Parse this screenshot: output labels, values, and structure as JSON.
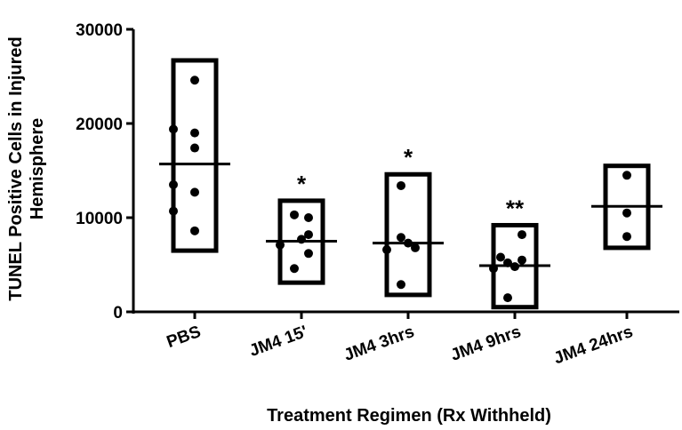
{
  "chart_data": {
    "type": "scatter",
    "ylabel_lines": [
      "TUNEL Positive Cells in Injured",
      "Hemisphere"
    ],
    "xlabel": "Treatment Regimen (Rx Withheld)",
    "ylim": [
      0,
      30000
    ],
    "yticks": [
      0,
      10000,
      20000,
      30000
    ],
    "ytick_labels": [
      "0",
      "10000",
      "20000",
      "30000"
    ],
    "groups": [
      {
        "label": "PBS",
        "min": 6500,
        "max": 26700,
        "mean": 15700,
        "points": [
          24600,
          19400,
          19000,
          17400,
          13500,
          12700,
          10700,
          8600
        ],
        "sig": ""
      },
      {
        "label": "JM4 15'",
        "min": 3100,
        "max": 11800,
        "mean": 7500,
        "points": [
          10300,
          10000,
          8200,
          7700,
          7100,
          6200,
          4600
        ],
        "sig": "*"
      },
      {
        "label": "JM4 3hrs",
        "min": 1800,
        "max": 14600,
        "mean": 7300,
        "points": [
          13400,
          7900,
          7300,
          6800,
          6600,
          2900
        ],
        "sig": "*"
      },
      {
        "label": "JM4 9hrs",
        "min": 500,
        "max": 9200,
        "mean": 4900,
        "points": [
          8200,
          5800,
          5500,
          5200,
          4800,
          4600,
          1500
        ],
        "sig": "**"
      },
      {
        "label": "JM4 24hrs",
        "min": 6800,
        "max": 15500,
        "mean": 11200,
        "points": [
          14500,
          10500,
          8000
        ],
        "sig": ""
      }
    ]
  }
}
